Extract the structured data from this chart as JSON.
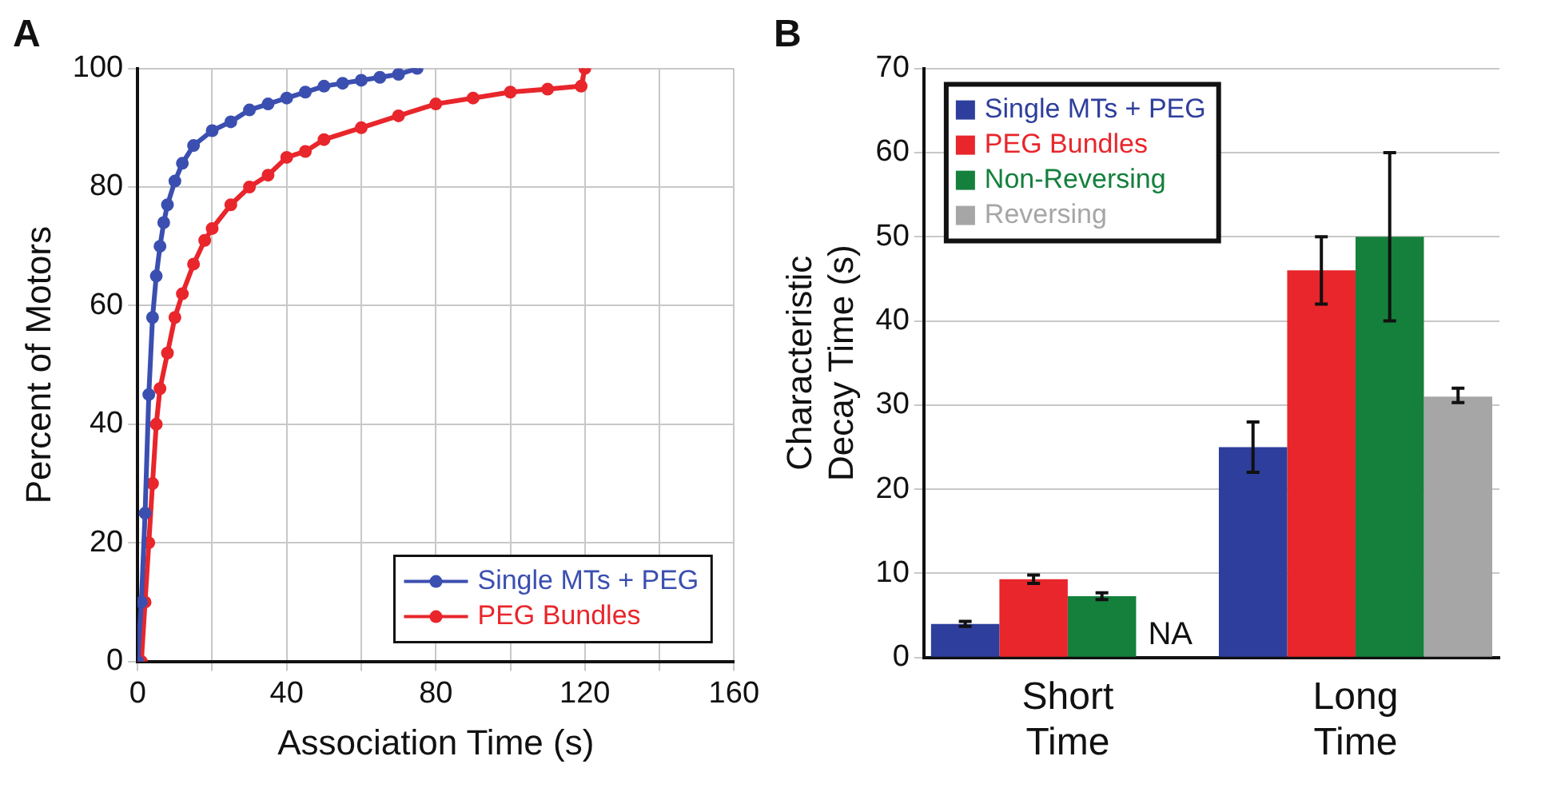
{
  "chart_data": [
    {
      "type": "line",
      "title": "A",
      "xlabel": "Association Time (s)",
      "ylabel": "Percent of Motors",
      "xlim": [
        0,
        160
      ],
      "ylim": [
        0,
        100
      ],
      "xticks": [
        0,
        {
          "value": 20,
          "label": null
        },
        40,
        {
          "value": 60,
          "label": null
        },
        80,
        {
          "value": 100,
          "label": null
        },
        120,
        {
          "value": 140,
          "label": null
        },
        160
      ],
      "yticks": [
        0,
        20,
        40,
        60,
        80,
        100
      ],
      "grid": true,
      "legend": "bottom right",
      "marker": "circle",
      "line_style": "solid",
      "series": [
        {
          "name": "Single MTs + PEG",
          "color": "#3b4fb0",
          "x": [
            0,
            1,
            2,
            3,
            4,
            5,
            6,
            7,
            8,
            10,
            12,
            15,
            20,
            25,
            30,
            35,
            40,
            45,
            50,
            55,
            60,
            65,
            70,
            75
          ],
          "values": [
            0,
            10,
            25,
            45,
            58,
            65,
            70,
            74,
            77,
            81,
            84,
            87,
            89.5,
            91,
            93,
            94,
            95,
            96,
            97,
            97.5,
            98,
            98.5,
            99,
            100
          ]
        },
        {
          "name": "PEG Bundles",
          "color": "#e8262b",
          "x": [
            1,
            2,
            3,
            4,
            5,
            6,
            8,
            10,
            12,
            15,
            18,
            20,
            25,
            30,
            35,
            40,
            45,
            50,
            60,
            70,
            80,
            90,
            100,
            110,
            119,
            120
          ],
          "values": [
            0,
            10,
            20,
            30,
            40,
            46,
            52,
            58,
            62,
            67,
            71,
            73,
            77,
            80,
            82,
            85,
            86,
            88,
            90,
            92,
            94,
            95,
            96,
            96.5,
            97,
            100
          ]
        }
      ]
    },
    {
      "type": "bar",
      "title": "B",
      "ylabel": "Characteristic\nDecay Time (s)",
      "categories": [
        "Short\nTime",
        "Long\nTime"
      ],
      "ylim": [
        0,
        70
      ],
      "yticks": [
        0,
        10,
        20,
        30,
        40,
        50,
        60,
        70
      ],
      "grid": "y",
      "legend": "top left",
      "series": [
        {
          "name": "Single MTs + PEG",
          "color": "#2e3e9c",
          "values": [
            4,
            25
          ],
          "errors": [
            0.3,
            [
              22,
              28
            ]
          ]
        },
        {
          "name": "PEG Bundles",
          "color": "#e8262b",
          "values": [
            9.3,
            46
          ],
          "errors": [
            0.5,
            [
              42,
              50
            ]
          ]
        },
        {
          "name": "Non-Reversing",
          "color": "#14803c",
          "values": [
            7.3,
            50
          ],
          "errors": [
            0.4,
            [
              40,
              60
            ]
          ]
        },
        {
          "name": "Reversing",
          "color": "#a6a6a6",
          "values": [
            null,
            31
          ],
          "errors": [
            null,
            [
              30.3,
              32
            ]
          ],
          "value_labels": [
            "NA",
            null
          ]
        }
      ]
    }
  ]
}
